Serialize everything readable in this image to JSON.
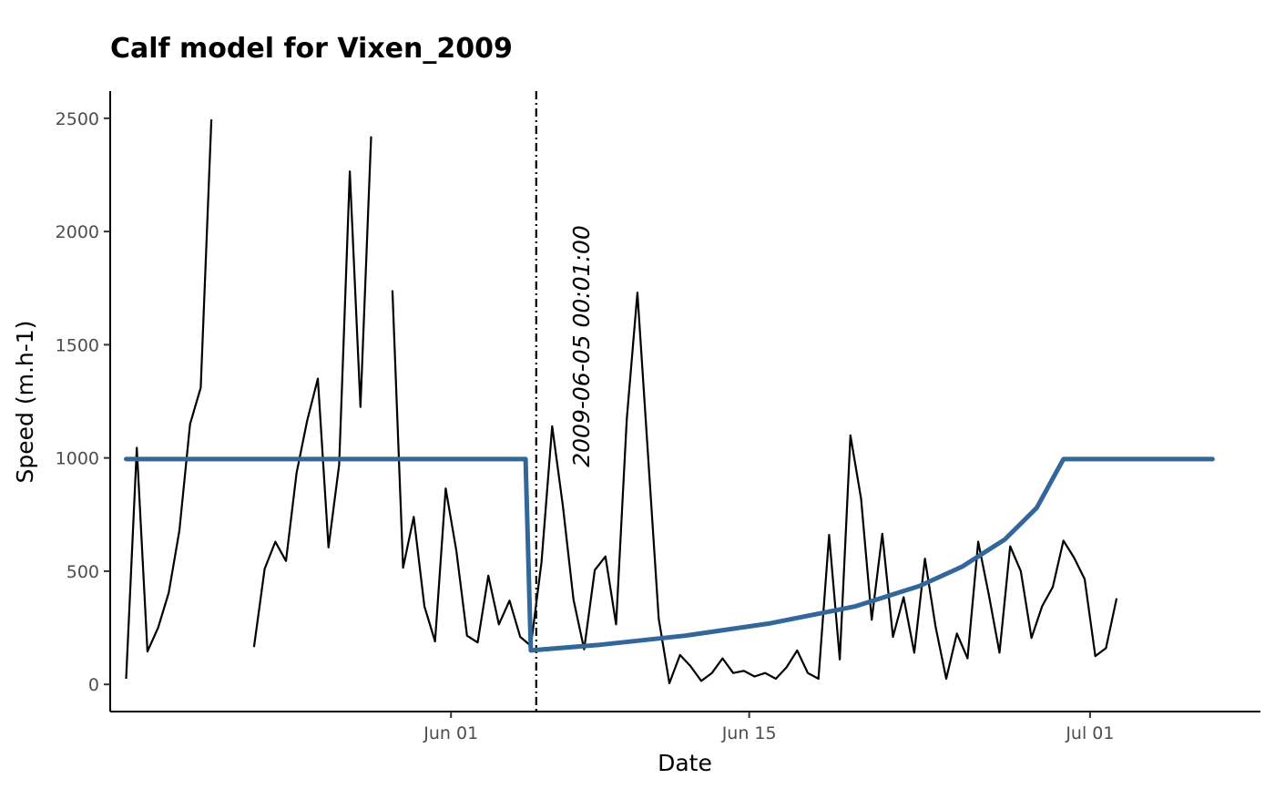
{
  "chart_data": {
    "type": "line",
    "title": "Calf model for Vixen_2009",
    "xlabel": "Date",
    "ylabel": "Speed (m.h-1)",
    "x_type": "date",
    "xlim": [
      "2009-05-16",
      "2009-07-09"
    ],
    "ylim": [
      -120,
      2620
    ],
    "x_ticks": [
      {
        "date": "2009-06-01",
        "label": "Jun 01"
      },
      {
        "date": "2009-06-15",
        "label": "Jun 15"
      },
      {
        "date": "2009-07-01",
        "label": "Jul 01"
      }
    ],
    "y_ticks": [
      0,
      500,
      1000,
      1500,
      2000,
      2500
    ],
    "grid": false,
    "colors": {
      "observed": "#000000",
      "model": "#336699"
    },
    "calving_date": "2009-06-05 00:01:00",
    "series": [
      {
        "role": "observed",
        "segments": [
          [
            [
              "2009-05-16 18:00",
              25
            ],
            [
              "2009-05-17 06:00",
              1045
            ],
            [
              "2009-05-17 18:00",
              145
            ],
            [
              "2009-05-18 06:00",
              250
            ],
            [
              "2009-05-18 18:00",
              405
            ],
            [
              "2009-05-19 06:00",
              680
            ],
            [
              "2009-05-19 18:00",
              1150
            ],
            [
              "2009-05-20 06:00",
              1310
            ],
            [
              "2009-05-20 18:00",
              2495
            ]
          ],
          [
            [
              "2009-05-22 18:00",
              165
            ],
            [
              "2009-05-23 06:00",
              510
            ],
            [
              "2009-05-23 18:00",
              630
            ],
            [
              "2009-05-24 06:00",
              545
            ],
            [
              "2009-05-24 18:00",
              935
            ],
            [
              "2009-05-25 06:00",
              1165
            ],
            [
              "2009-05-25 18:00",
              1350
            ],
            [
              "2009-05-26 06:00",
              605
            ],
            [
              "2009-05-26 18:00",
              970
            ],
            [
              "2009-05-27 06:00",
              2265
            ],
            [
              "2009-05-27 18:00",
              1225
            ],
            [
              "2009-05-28 06:00",
              2420
            ]
          ],
          [
            [
              "2009-05-29 06:00",
              1740
            ],
            [
              "2009-05-29 18:00",
              515
            ],
            [
              "2009-05-30 06:00",
              740
            ],
            [
              "2009-05-30 18:00",
              345
            ],
            [
              "2009-05-31 06:00",
              190
            ],
            [
              "2009-05-31 18:00",
              865
            ],
            [
              "2009-06-01 06:00",
              590
            ],
            [
              "2009-06-01 18:00",
              215
            ],
            [
              "2009-06-02 06:00",
              185
            ],
            [
              "2009-06-02 18:00",
              480
            ],
            [
              "2009-06-03 06:00",
              265
            ],
            [
              "2009-06-03 18:00",
              370
            ],
            [
              "2009-06-04 06:00",
              210
            ],
            [
              "2009-06-04 18:00",
              170
            ],
            [
              "2009-06-05 06:00",
              540
            ],
            [
              "2009-06-05 18:00",
              1140
            ],
            [
              "2009-06-06 06:00",
              790
            ],
            [
              "2009-06-06 18:00",
              375
            ],
            [
              "2009-06-07 06:00",
              155
            ],
            [
              "2009-06-07 18:00",
              505
            ],
            [
              "2009-06-08 06:00",
              565
            ],
            [
              "2009-06-08 18:00",
              265
            ],
            [
              "2009-06-09 06:00",
              1170
            ],
            [
              "2009-06-09 18:00",
              1730
            ],
            [
              "2009-06-10 06:00",
              1010
            ],
            [
              "2009-06-10 18:00",
              290
            ],
            [
              "2009-06-11 06:00",
              5
            ],
            [
              "2009-06-11 18:00",
              130
            ],
            [
              "2009-06-12 06:00",
              80
            ],
            [
              "2009-06-12 18:00",
              15
            ],
            [
              "2009-06-13 06:00",
              50
            ],
            [
              "2009-06-13 18:00",
              115
            ],
            [
              "2009-06-14 06:00",
              50
            ],
            [
              "2009-06-14 18:00",
              60
            ],
            [
              "2009-06-15 06:00",
              35
            ],
            [
              "2009-06-15 18:00",
              50
            ],
            [
              "2009-06-16 06:00",
              25
            ],
            [
              "2009-06-16 18:00",
              75
            ],
            [
              "2009-06-17 06:00",
              150
            ],
            [
              "2009-06-17 18:00",
              50
            ],
            [
              "2009-06-18 06:00",
              25
            ],
            [
              "2009-06-18 18:00",
              660
            ],
            [
              "2009-06-19 06:00",
              110
            ],
            [
              "2009-06-19 18:00",
              1100
            ],
            [
              "2009-06-20 06:00",
              820
            ],
            [
              "2009-06-20 18:00",
              285
            ],
            [
              "2009-06-21 06:00",
              665
            ],
            [
              "2009-06-21 18:00",
              210
            ],
            [
              "2009-06-22 06:00",
              385
            ],
            [
              "2009-06-22 18:00",
              140
            ],
            [
              "2009-06-23 06:00",
              555
            ],
            [
              "2009-06-23 18:00",
              255
            ],
            [
              "2009-06-24 06:00",
              25
            ],
            [
              "2009-06-24 18:00",
              225
            ],
            [
              "2009-06-25 06:00",
              115
            ],
            [
              "2009-06-25 18:00",
              630
            ],
            [
              "2009-06-26 06:00",
              395
            ],
            [
              "2009-06-26 18:00",
              140
            ],
            [
              "2009-06-27 06:00",
              610
            ],
            [
              "2009-06-27 18:00",
              500
            ],
            [
              "2009-06-28 06:00",
              205
            ],
            [
              "2009-06-28 18:00",
              345
            ],
            [
              "2009-06-29 06:00",
              430
            ],
            [
              "2009-06-29 18:00",
              635
            ],
            [
              "2009-06-30 06:00",
              560
            ],
            [
              "2009-06-30 18:00",
              465
            ],
            [
              "2009-07-01 06:00",
              125
            ],
            [
              "2009-07-01 18:00",
              160
            ],
            [
              "2009-07-02 06:00",
              380
            ]
          ]
        ]
      },
      {
        "role": "model",
        "points": [
          [
            "2009-05-16 18:00",
            995
          ],
          [
            "2009-06-04 12:00",
            995
          ],
          [
            "2009-06-04 18:00",
            150
          ],
          [
            "2009-06-08 00:00",
            175
          ],
          [
            "2009-06-12 00:00",
            215
          ],
          [
            "2009-06-16 00:00",
            270
          ],
          [
            "2009-06-20 00:00",
            345
          ],
          [
            "2009-06-23 00:00",
            435
          ],
          [
            "2009-06-25 00:00",
            520
          ],
          [
            "2009-06-27 00:00",
            640
          ],
          [
            "2009-06-28 12:00",
            780
          ],
          [
            "2009-06-29 18:00",
            995
          ],
          [
            "2009-07-06 18:00",
            995
          ]
        ]
      }
    ]
  }
}
